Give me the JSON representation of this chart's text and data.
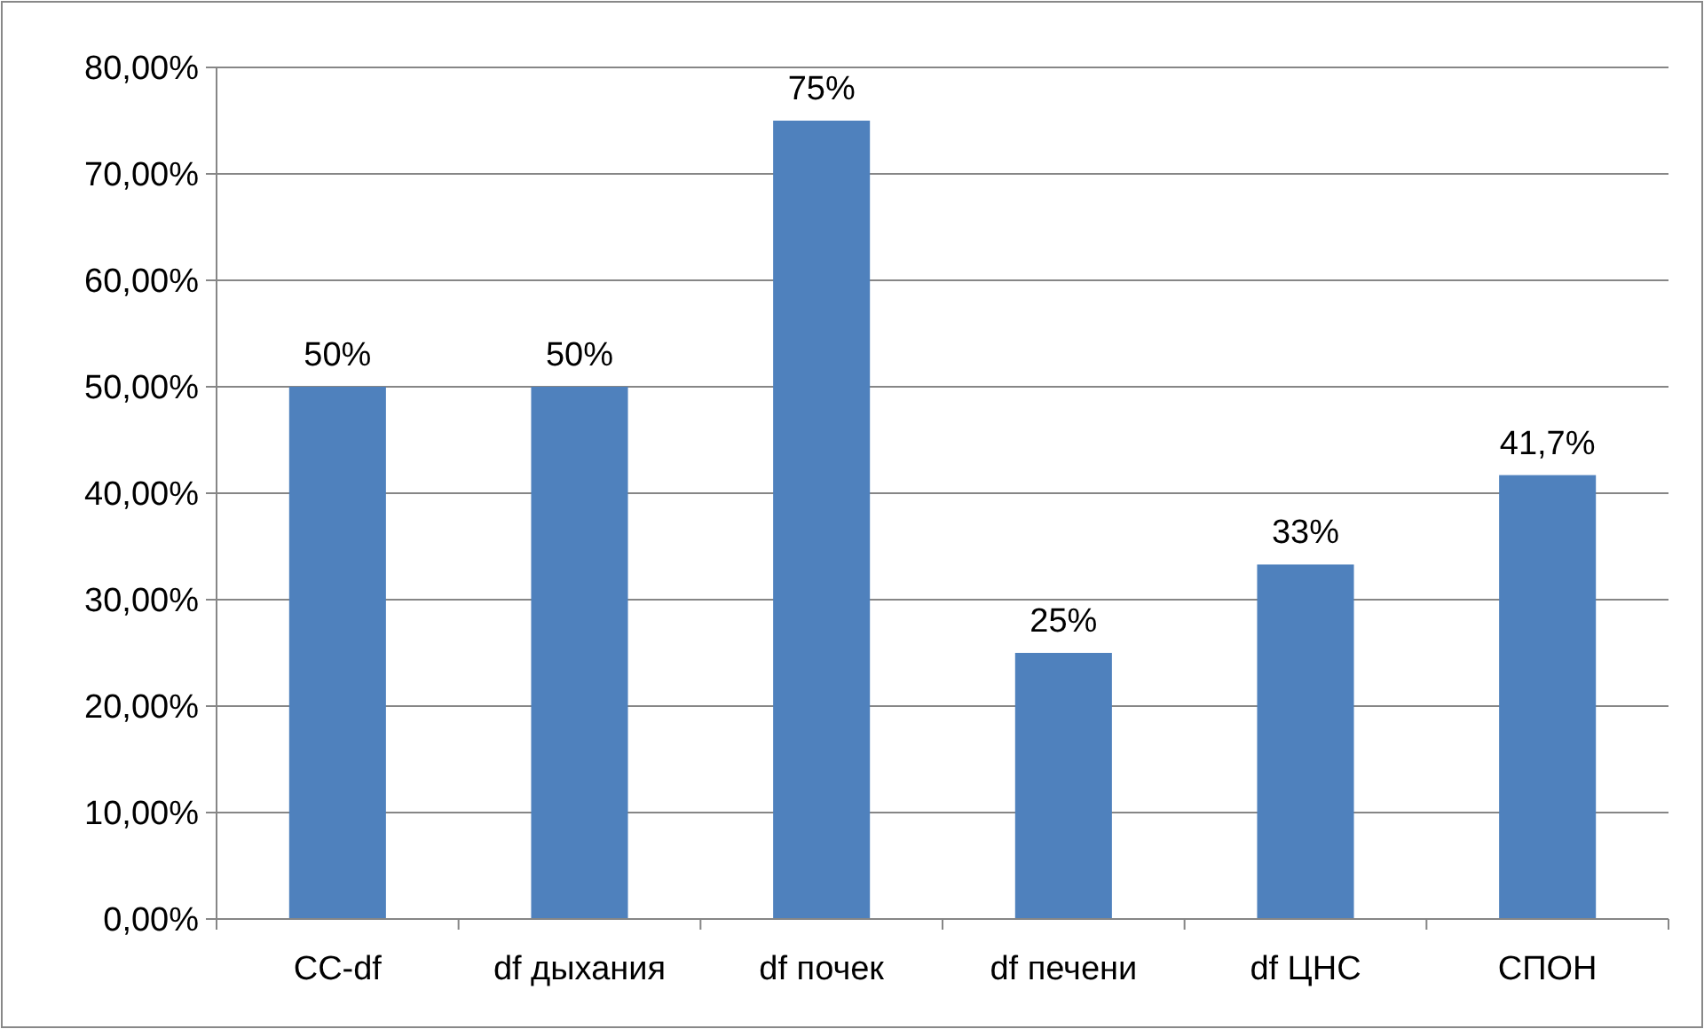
{
  "chart_data": {
    "type": "bar",
    "categories": [
      "СС-df",
      "df дыхания",
      "df почек",
      "df печени",
      "df ЦНС",
      "СПОН"
    ],
    "values": [
      50,
      50,
      75,
      25,
      33.3,
      41.7
    ],
    "value_labels": [
      "50%",
      "50%",
      "75%",
      "25%",
      "33%",
      "41,7%"
    ],
    "color": "#4f81bd",
    "ylim": [
      0,
      80
    ],
    "yticks": [
      {
        "value": 0,
        "label": "0,00%"
      },
      {
        "value": 10,
        "label": "10,00%"
      },
      {
        "value": 20,
        "label": "20,00%"
      },
      {
        "value": 30,
        "label": "30,00%"
      },
      {
        "value": 40,
        "label": "40,00%"
      },
      {
        "value": 50,
        "label": "50,00%"
      },
      {
        "value": 60,
        "label": "60,00%"
      },
      {
        "value": 70,
        "label": "70,00%"
      },
      {
        "value": 80,
        "label": "80,00%"
      }
    ],
    "grid": "y"
  }
}
